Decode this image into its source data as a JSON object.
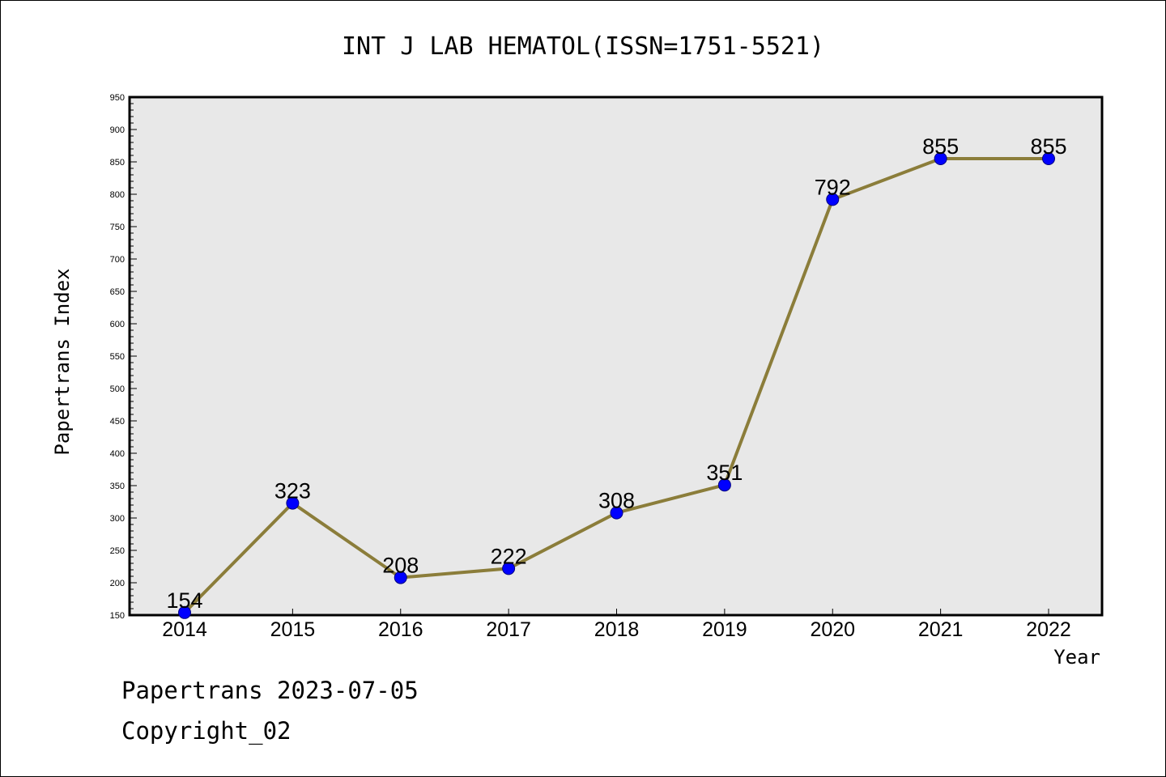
{
  "chart_data": {
    "type": "line",
    "title": "INT J LAB HEMATOL(ISSN=1751-5521)",
    "xlabel": "Year",
    "ylabel": "Papertrans Index",
    "categories": [
      "2014",
      "2015",
      "2016",
      "2017",
      "2018",
      "2019",
      "2020",
      "2021",
      "2022"
    ],
    "values": [
      154,
      323,
      208,
      222,
      308,
      351,
      792,
      855,
      855
    ],
    "data_labels": [
      "154",
      "323",
      "208",
      "222",
      "308",
      "351",
      "792",
      "855",
      "855"
    ],
    "ylim": [
      150,
      950
    ],
    "yticks": [
      "150",
      "200",
      "250",
      "300",
      "350",
      "400",
      "450",
      "500",
      "550",
      "600",
      "650",
      "700",
      "750",
      "800",
      "850",
      "900",
      "950"
    ],
    "grid": false,
    "legend": "none",
    "colors": {
      "line": "#8b7d3a",
      "marker": "#0000ff",
      "plot_background": "#e8e8e8"
    }
  },
  "footer": {
    "line1": "Papertrans 2023-07-05",
    "line2": "Copyright_02"
  }
}
